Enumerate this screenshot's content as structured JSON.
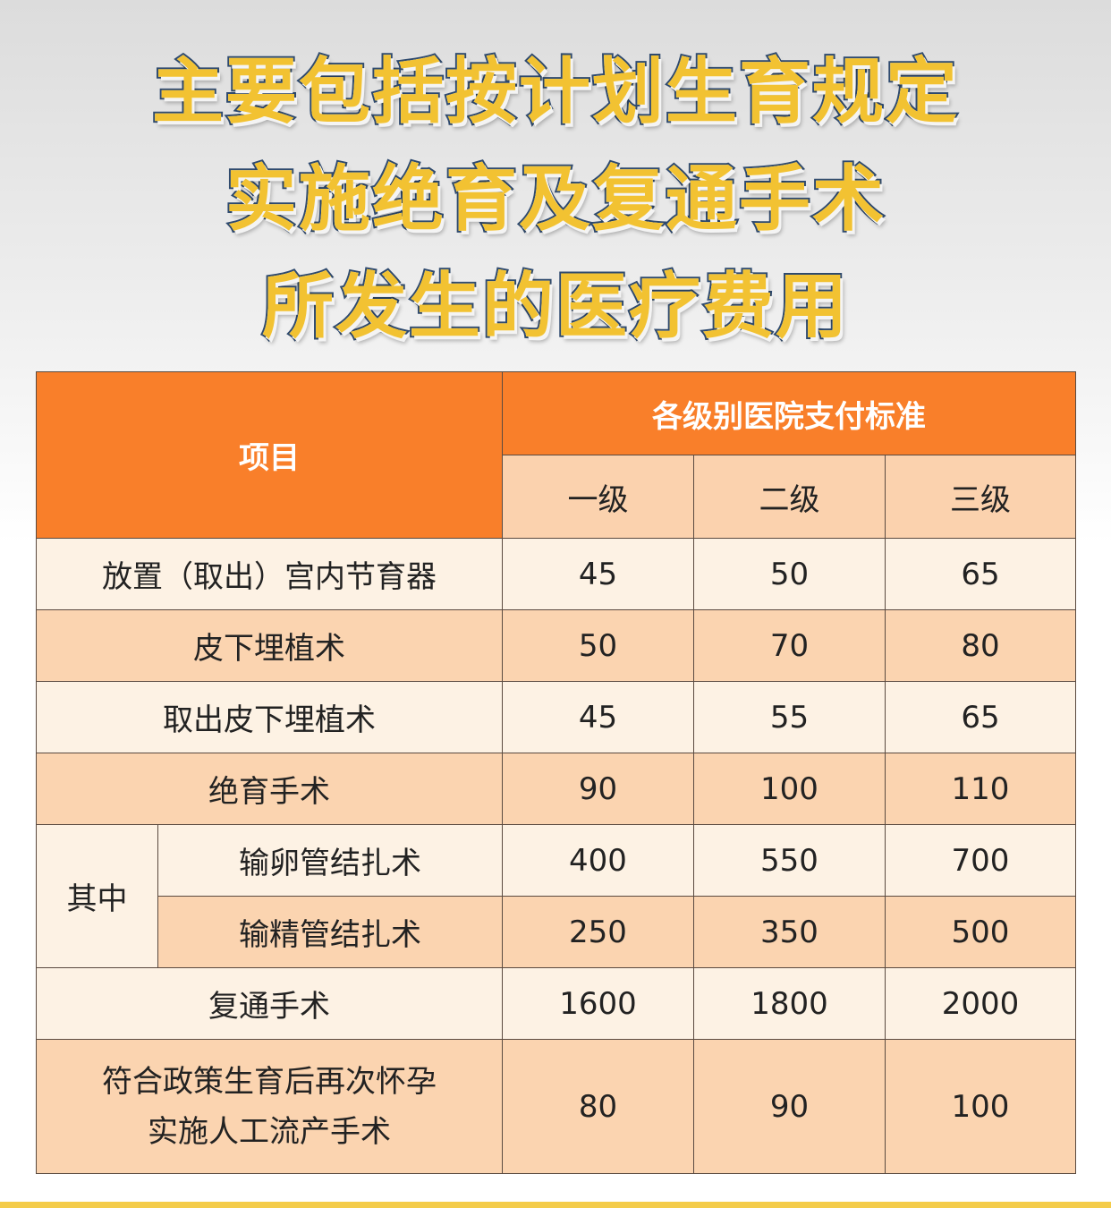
{
  "title_lines": [
    "主要包括按计划生育规定",
    "实施绝育及复通手术",
    "所发生的医疗费用"
  ],
  "table": {
    "header_item": "项目",
    "header_group": "各级别医院支付标准",
    "levels": [
      "一级",
      "二级",
      "三级"
    ],
    "group_label": "其中",
    "rows": [
      {
        "label": "放置（取出）宫内节育器",
        "values": [
          "45",
          "50",
          "65"
        ]
      },
      {
        "label": "皮下埋植术",
        "values": [
          "50",
          "70",
          "80"
        ]
      },
      {
        "label": "取出皮下埋植术",
        "values": [
          "45",
          "55",
          "65"
        ]
      },
      {
        "label": "绝育手术",
        "values": [
          "90",
          "100",
          "110"
        ]
      },
      {
        "label": "输卵管结扎术",
        "values": [
          "400",
          "550",
          "700"
        ]
      },
      {
        "label": "输精管结扎术",
        "values": [
          "250",
          "350",
          "500"
        ]
      },
      {
        "label": "复通手术",
        "values": [
          "1600",
          "1800",
          "2000"
        ]
      },
      {
        "label_line1": "符合政策生育后再次怀孕",
        "label_line2": "实施人工流产手术",
        "values": [
          "80",
          "90",
          "100"
        ]
      }
    ]
  },
  "colors": {
    "header": "#f97f2a",
    "title_fill": "#f2c232",
    "title_outline": "#2f4a6e",
    "row_light": "#fdf2e4",
    "row_peach": "#fbd4b0"
  }
}
